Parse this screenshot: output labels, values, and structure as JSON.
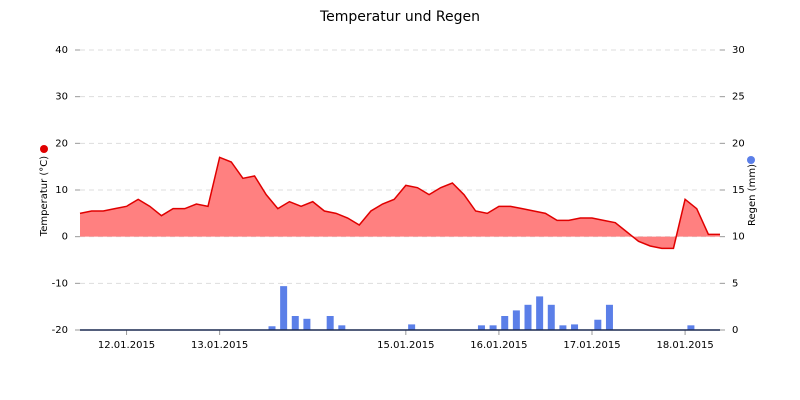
{
  "chart_data": {
    "type": "area",
    "title": "Temperatur und Regen",
    "ylabel": "Temperatur (°C)",
    "y2label": "Regen (mm)",
    "xlim": [
      0,
      165
    ],
    "xticks": [
      {
        "value": 12,
        "label": "12.01.2015"
      },
      {
        "value": 36,
        "label": "13.01.2015"
      },
      {
        "value": 84,
        "label": "15.01.2015"
      },
      {
        "value": 108,
        "label": "16.01.2015"
      },
      {
        "value": 132,
        "label": "17.01.2015"
      },
      {
        "value": 156,
        "label": "18.01.2015"
      }
    ],
    "ylim": [
      -20,
      40
    ],
    "yticks": [
      -20,
      -10,
      0,
      10,
      20,
      30,
      40
    ],
    "y2lim": [
      0,
      30
    ],
    "y2ticks": [
      0,
      5,
      10,
      15,
      20,
      25,
      30
    ],
    "grid": true,
    "series": [
      {
        "name": "Temperatur (°C)",
        "type": "area",
        "color": "#e00000",
        "fill": "#ff8080",
        "x": [
          0,
          3,
          6,
          9,
          12,
          15,
          18,
          21,
          24,
          27,
          30,
          33,
          36,
          39,
          42,
          45,
          48,
          51,
          54,
          57,
          60,
          63,
          66,
          69,
          72,
          75,
          78,
          81,
          84,
          87,
          90,
          93,
          96,
          99,
          102,
          105,
          108,
          111,
          114,
          117,
          120,
          123,
          126,
          129,
          132,
          135,
          138,
          141,
          144,
          147,
          150,
          153,
          156,
          159,
          162,
          165
        ],
        "values": [
          5,
          5.5,
          5.5,
          6,
          6.5,
          8,
          6.5,
          4.5,
          6,
          6,
          7,
          6.5,
          17,
          16,
          12.5,
          13,
          9,
          6,
          7.5,
          6.5,
          7.5,
          5.5,
          5,
          4,
          2.5,
          5.5,
          7,
          8,
          11,
          10.5,
          9,
          10.5,
          11.5,
          9,
          5.5,
          5,
          6.5,
          6.5,
          6,
          5.5,
          5,
          3.5,
          3.5,
          4,
          4,
          3.5,
          3,
          1,
          -1,
          -2,
          -2.5,
          -2.5,
          8,
          6,
          0.5,
          0.5
        ]
      },
      {
        "name": "Regen (mm)",
        "type": "bar",
        "axis": "y2",
        "color": "#5b7fe8",
        "x": [
          49.5,
          52.5,
          55.5,
          58.5,
          64.5,
          67.5,
          85.5,
          103.5,
          106.5,
          109.5,
          112.5,
          115.5,
          118.5,
          121.5,
          124.5,
          127.5,
          133.5,
          136.5,
          157.5
        ],
        "values": [
          0.4,
          4.7,
          1.5,
          1.2,
          1.5,
          0.5,
          0.6,
          0.5,
          0.5,
          1.5,
          2.1,
          2.7,
          3.6,
          2.7,
          0.5,
          0.6,
          1.1,
          2.7,
          0.5
        ]
      }
    ]
  }
}
